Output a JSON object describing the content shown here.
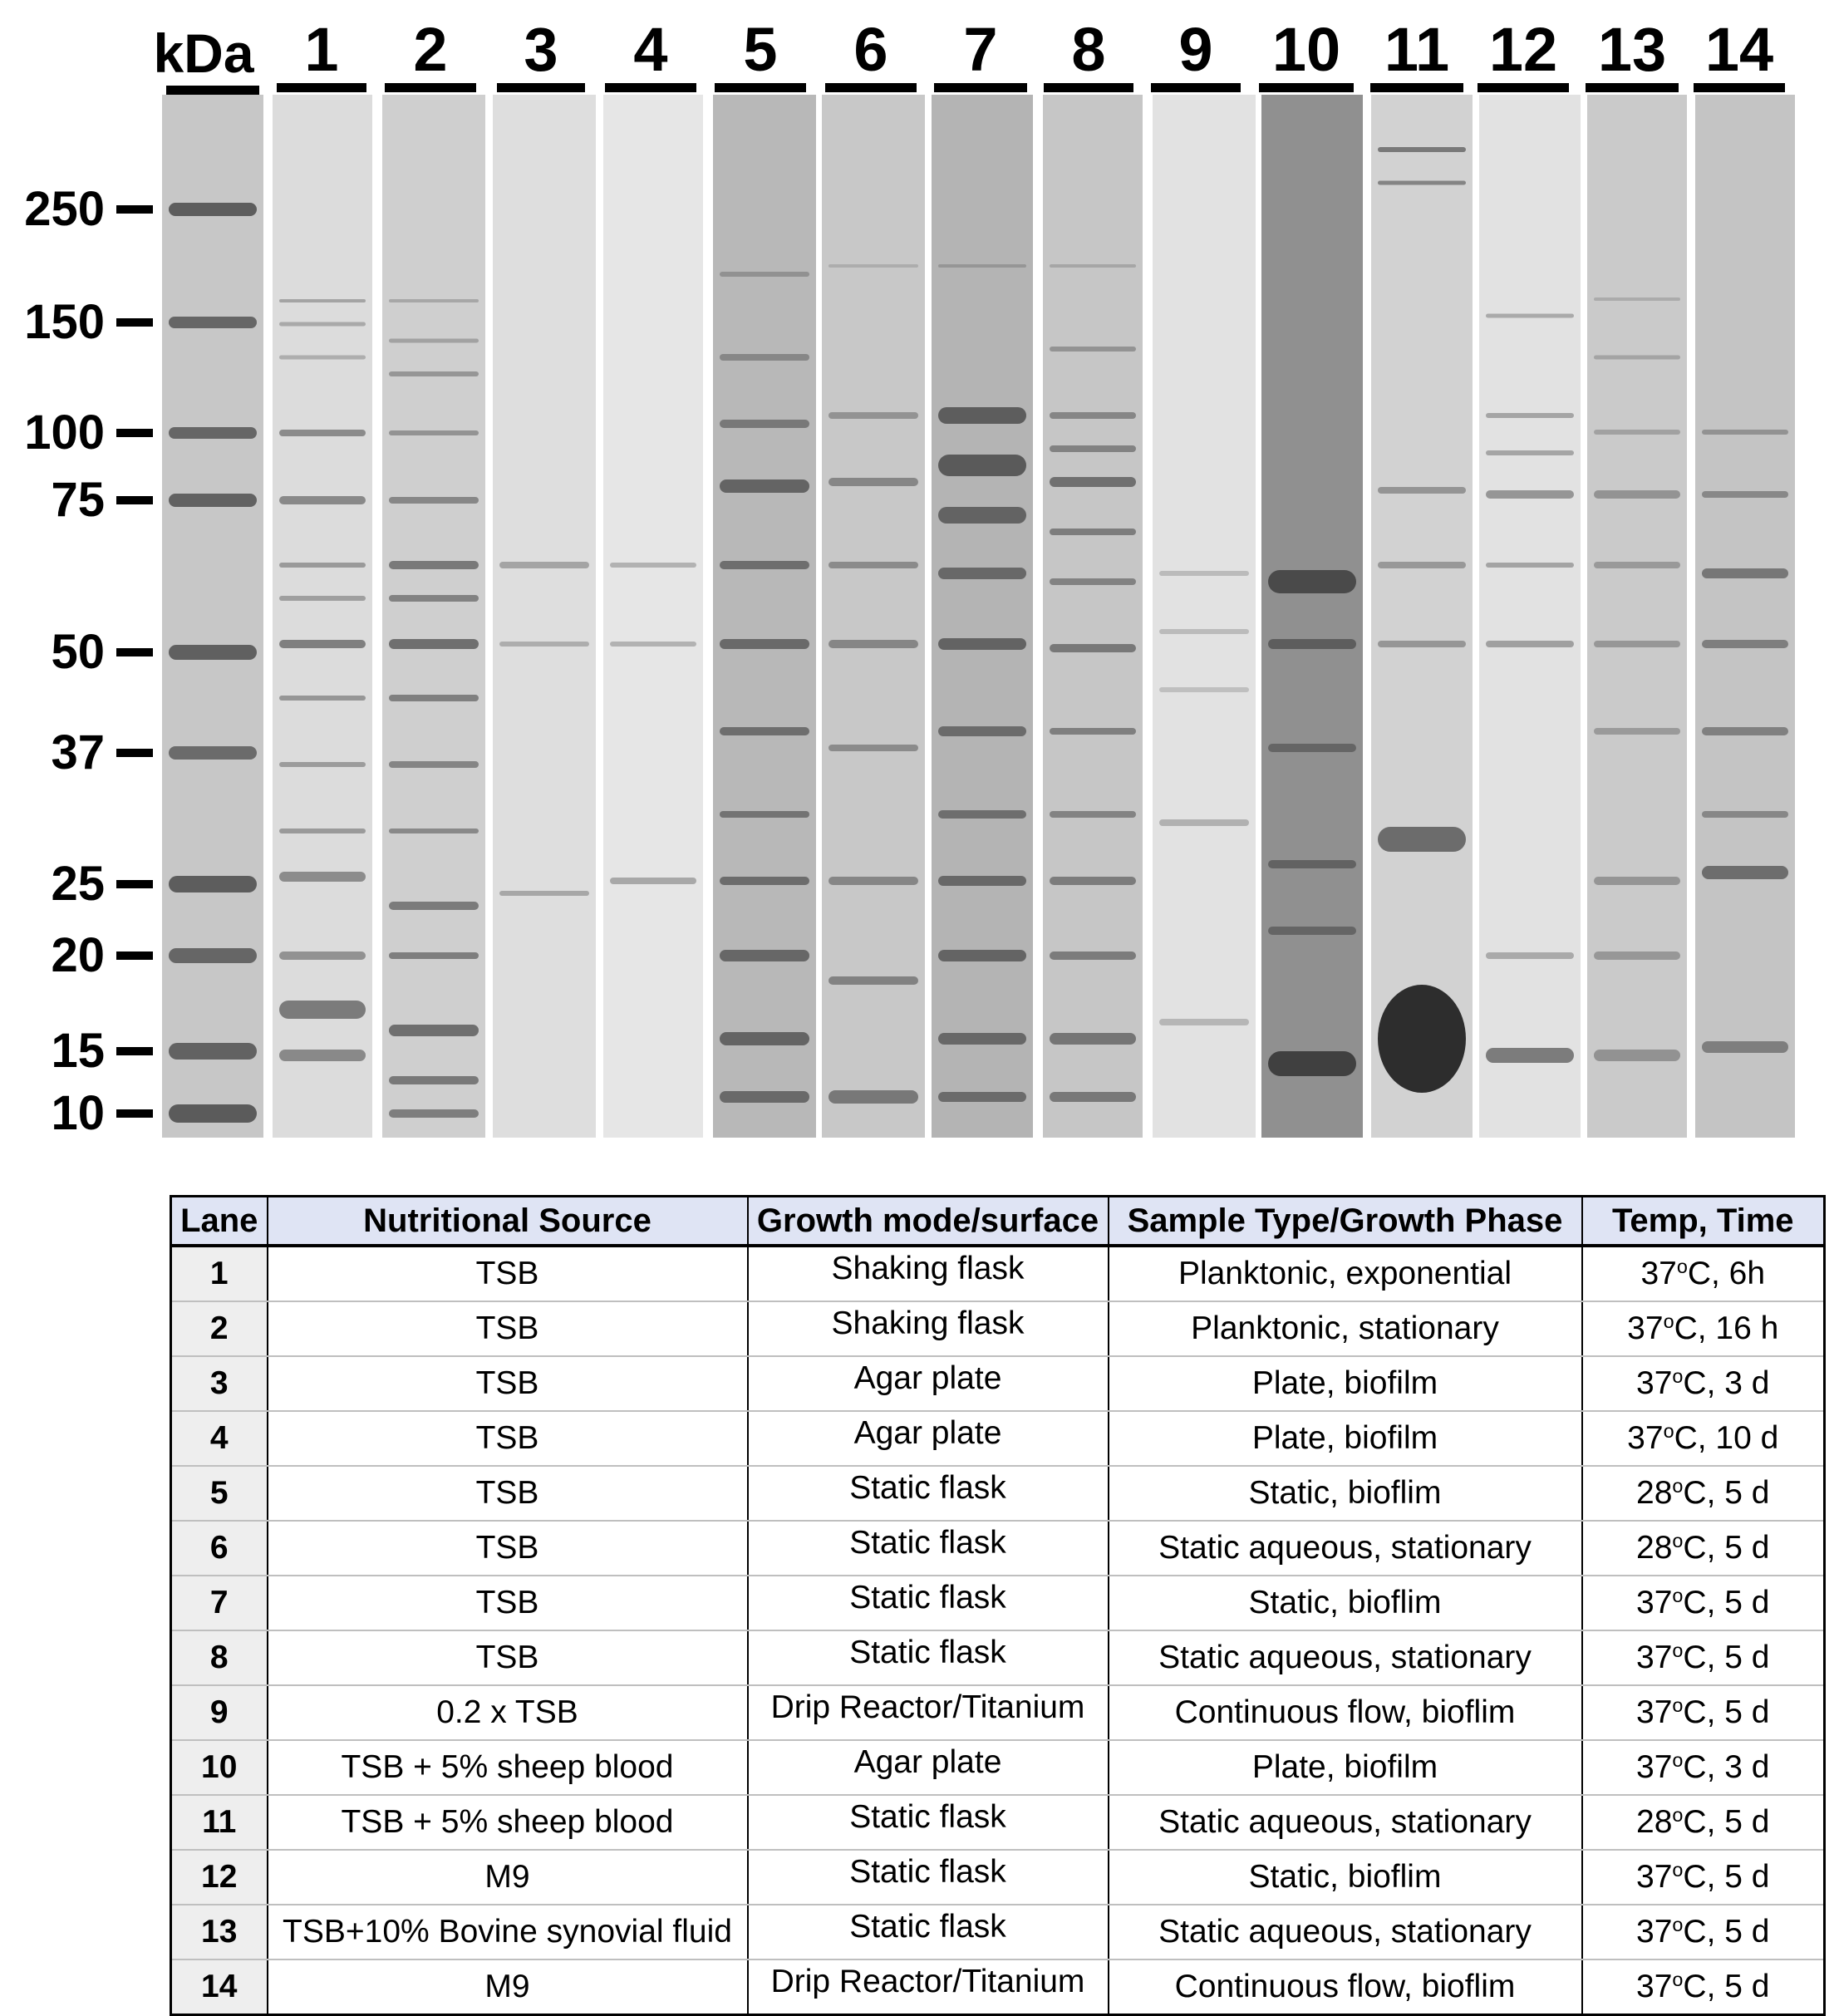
{
  "gel": {
    "unit_label": "kDa",
    "lane_labels": [
      "1",
      "2",
      "3",
      "4",
      "5",
      "6",
      "7",
      "8",
      "9",
      "10",
      "11",
      "12",
      "13",
      "14"
    ],
    "markers": [
      {
        "label": "250",
        "kda": 250
      },
      {
        "label": "150",
        "kda": 150
      },
      {
        "label": "100",
        "kda": 100
      },
      {
        "label": "75",
        "kda": 75
      },
      {
        "label": "50",
        "kda": 50
      },
      {
        "label": "37",
        "kda": 37
      },
      {
        "label": "25",
        "kda": 25
      },
      {
        "label": "20",
        "kda": 20
      },
      {
        "label": "15",
        "kda": 15
      },
      {
        "label": "10",
        "kda": 10
      }
    ]
  },
  "table": {
    "headers": {
      "lane": "Lane",
      "nutritional_source": "Nutritional Source",
      "growth_mode": "Growth mode/surface",
      "sample_type": "Sample Type/Growth Phase",
      "temp_time": "Temp, Time"
    },
    "rows": [
      {
        "lane": "1",
        "nutritional_source": "TSB",
        "growth_mode": "Shaking flask",
        "sample_type": "Planktonic, exponential",
        "temp": "37",
        "deg": "o",
        "time": "C, 6h"
      },
      {
        "lane": "2",
        "nutritional_source": "TSB",
        "growth_mode": "Shaking flask",
        "sample_type": "Planktonic, stationary",
        "temp": "37",
        "deg": "o",
        "time": "C, 16 h"
      },
      {
        "lane": "3",
        "nutritional_source": "TSB",
        "growth_mode": "Agar plate",
        "sample_type": "Plate, biofilm",
        "temp": "37",
        "deg": "o",
        "time": "C, 3 d"
      },
      {
        "lane": "4",
        "nutritional_source": "TSB",
        "growth_mode": "Agar plate",
        "sample_type": "Plate, biofilm",
        "temp": "37",
        "deg": "o",
        "time": "C, 10 d"
      },
      {
        "lane": "5",
        "nutritional_source": "TSB",
        "growth_mode": "Static flask",
        "sample_type": "Static, bioflim",
        "temp": "28",
        "deg": "o",
        "time": "C, 5 d"
      },
      {
        "lane": "6",
        "nutritional_source": "TSB",
        "growth_mode": "Static flask",
        "sample_type": "Static aqueous, stationary",
        "temp": "28",
        "deg": "o",
        "time": "C, 5 d"
      },
      {
        "lane": "7",
        "nutritional_source": "TSB",
        "growth_mode": "Static flask",
        "sample_type": "Static, bioflim",
        "temp": "37",
        "deg": "o",
        "time": "C, 5 d"
      },
      {
        "lane": "8",
        "nutritional_source": "TSB",
        "growth_mode": "Static flask",
        "sample_type": "Static aqueous, stationary",
        "temp": "37",
        "deg": "o",
        "time": "C, 5 d"
      },
      {
        "lane": "9",
        "nutritional_source": "0.2 x TSB",
        "growth_mode": "Drip Reactor/Titanium",
        "sample_type": "Continuous flow, bioflim",
        "temp": "37",
        "deg": "o",
        "time": "C, 5 d"
      },
      {
        "lane": "10",
        "nutritional_source": "TSB + 5% sheep blood",
        "growth_mode": "Agar plate",
        "sample_type": "Plate, biofilm",
        "temp": "37",
        "deg": "o",
        "time": "C, 3 d"
      },
      {
        "lane": "11",
        "nutritional_source": "TSB + 5% sheep blood",
        "growth_mode": "Static flask",
        "sample_type": "Static aqueous, stationary",
        "temp": "28",
        "deg": "o",
        "time": "C, 5 d"
      },
      {
        "lane": "12",
        "nutritional_source": "M9",
        "growth_mode": "Static flask",
        "sample_type": "Static, bioflim",
        "temp": "37",
        "deg": "o",
        "time": "C, 5 d"
      },
      {
        "lane": "13",
        "nutritional_source": "TSB+10% Bovine synovial fluid",
        "growth_mode": "Static flask",
        "sample_type": "Static aqueous, stationary",
        "temp": "37",
        "deg": "o",
        "time": "C, 5 d"
      },
      {
        "lane": "14",
        "nutritional_source": "M9",
        "growth_mode": "Drip Reactor/Titanium",
        "sample_type": "Continuous flow, bioflim",
        "temp": "37",
        "deg": "o",
        "time": "C, 5 d"
      }
    ]
  }
}
